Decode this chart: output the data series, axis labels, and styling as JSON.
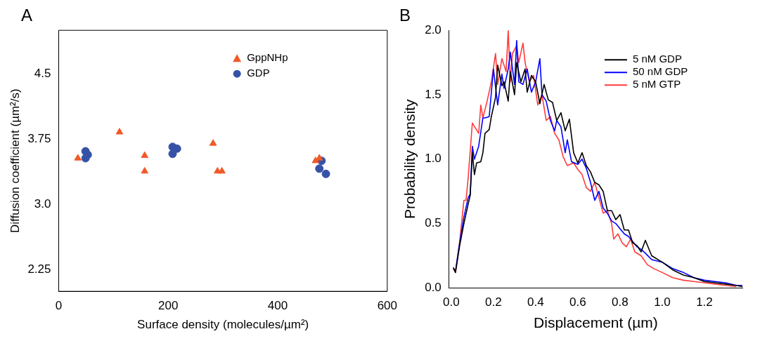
{
  "chart_data": [
    {
      "type": "scatter",
      "title": "A",
      "xlabel": "Surface density (molecules/µm²)",
      "ylabel": "Diffusion coefficient (µm²/s)",
      "xlim": [
        0,
        600
      ],
      "ylim": [
        2,
        5
      ],
      "xticks": [
        0,
        200,
        400,
        600
      ],
      "yticks": [
        2.25,
        {
          "value": 3.0,
          "label": "3.0"
        },
        3.75,
        4.5
      ],
      "grid": false,
      "legend": "top right",
      "series": [
        {
          "name": "GppNHp",
          "color": "#f05a28",
          "marker": "triangle",
          "x": [
            35,
            111,
            157,
            157,
            282,
            290,
            298,
            469,
            476
          ],
          "values": [
            3.53,
            3.83,
            3.56,
            3.38,
            3.7,
            3.38,
            3.38,
            3.5,
            3.53
          ]
        },
        {
          "name": "GDP",
          "color": "#3652a6",
          "marker": "circle",
          "x": [
            49,
            53,
            49,
            208,
            216,
            208,
            480,
            476,
            488
          ],
          "values": [
            3.61,
            3.57,
            3.53,
            3.66,
            3.64,
            3.58,
            3.5,
            3.41,
            3.35
          ]
        }
      ]
    },
    {
      "type": "line",
      "title": "B",
      "xlabel": "Displacement (µm)",
      "ylabel": "Probability density",
      "xlim": [
        -0.01,
        1.38
      ],
      "ylim": [
        0,
        2
      ],
      "xticks": [
        {
          "value": 0,
          "label": "0.0"
        },
        {
          "value": 0.2,
          "label": "0.2"
        },
        {
          "value": 0.4,
          "label": "0.4"
        },
        {
          "value": 0.6,
          "label": "0.6"
        },
        {
          "value": 0.8,
          "label": "0.8"
        },
        {
          "value": 1.0,
          "label": "1.0"
        },
        {
          "value": 1.2,
          "label": "1.2"
        }
      ],
      "yticks": [
        {
          "value": 0,
          "label": "0.0"
        },
        {
          "value": 0.5,
          "label": "0.5"
        },
        {
          "value": 1.0,
          "label": "1.0"
        },
        {
          "value": 1.5,
          "label": "1.5"
        },
        {
          "value": 2.0,
          "label": "2.0"
        }
      ],
      "grid": false,
      "legend": "top right",
      "marker": "none",
      "line_style": "solid",
      "series": [
        {
          "name": "5 nM GDP",
          "color": "#000000",
          "x": [
            0.01,
            0.02,
            0.04,
            0.06,
            0.08,
            0.09,
            0.1,
            0.11,
            0.12,
            0.14,
            0.15,
            0.16,
            0.18,
            0.19,
            0.21,
            0.22,
            0.24,
            0.25,
            0.27,
            0.28,
            0.3,
            0.31,
            0.33,
            0.35,
            0.36,
            0.38,
            0.4,
            0.42,
            0.44,
            0.46,
            0.48,
            0.5,
            0.52,
            0.54,
            0.56,
            0.58,
            0.6,
            0.62,
            0.64,
            0.66,
            0.68,
            0.7,
            0.72,
            0.74,
            0.76,
            0.78,
            0.8,
            0.82,
            0.84,
            0.86,
            0.88,
            0.9,
            0.92,
            0.95,
            1.0,
            1.05,
            1.1,
            1.15,
            1.2,
            1.25,
            1.3,
            1.35,
            1.38
          ],
          "values": [
            0.16,
            0.12,
            0.33,
            0.5,
            0.65,
            0.72,
            1.05,
            0.88,
            0.97,
            0.98,
            1.05,
            1.2,
            1.23,
            1.33,
            1.48,
            1.73,
            1.57,
            1.6,
            1.45,
            1.68,
            1.5,
            1.75,
            1.6,
            1.7,
            1.52,
            1.65,
            1.6,
            1.43,
            1.58,
            1.46,
            1.44,
            1.3,
            1.36,
            1.22,
            1.31,
            1.05,
            0.97,
            1.05,
            0.95,
            0.9,
            0.82,
            0.8,
            0.75,
            0.6,
            0.6,
            0.53,
            0.57,
            0.45,
            0.45,
            0.35,
            0.33,
            0.28,
            0.37,
            0.25,
            0.2,
            0.14,
            0.1,
            0.08,
            0.05,
            0.04,
            0.03,
            0.02,
            0.01
          ]
        },
        {
          "name": "50 nM GDP",
          "color": "#0000ff",
          "x": [
            0.01,
            0.02,
            0.04,
            0.06,
            0.08,
            0.09,
            0.1,
            0.11,
            0.13,
            0.15,
            0.16,
            0.18,
            0.2,
            0.22,
            0.24,
            0.25,
            0.27,
            0.28,
            0.3,
            0.31,
            0.32,
            0.34,
            0.36,
            0.38,
            0.4,
            0.42,
            0.43,
            0.45,
            0.47,
            0.49,
            0.5,
            0.52,
            0.54,
            0.55,
            0.57,
            0.6,
            0.62,
            0.64,
            0.66,
            0.68,
            0.7,
            0.72,
            0.74,
            0.76,
            0.78,
            0.8,
            0.82,
            0.84,
            0.86,
            0.88,
            0.9,
            0.92,
            0.95,
            1.0,
            1.05,
            1.1,
            1.15,
            1.2,
            1.25,
            1.3,
            1.35,
            1.38
          ],
          "values": [
            0.15,
            0.13,
            0.35,
            0.55,
            0.7,
            0.73,
            1.1,
            1.0,
            1.1,
            1.32,
            1.32,
            1.33,
            1.7,
            1.42,
            1.66,
            1.55,
            1.7,
            1.83,
            1.58,
            1.92,
            1.6,
            1.58,
            1.7,
            1.52,
            1.6,
            1.78,
            1.5,
            1.45,
            1.3,
            1.22,
            1.3,
            1.25,
            1.05,
            1.15,
            0.98,
            0.96,
            1.0,
            0.93,
            0.82,
            0.68,
            0.75,
            0.62,
            0.58,
            0.52,
            0.5,
            0.46,
            0.42,
            0.4,
            0.36,
            0.32,
            0.3,
            0.27,
            0.22,
            0.2,
            0.15,
            0.12,
            0.08,
            0.06,
            0.05,
            0.04,
            0.02,
            0.02
          ]
        },
        {
          "name": "5 nM GTP",
          "color": "#ff3b3b",
          "x": [
            0.01,
            0.02,
            0.04,
            0.06,
            0.07,
            0.08,
            0.1,
            0.11,
            0.13,
            0.14,
            0.15,
            0.17,
            0.19,
            0.21,
            0.22,
            0.24,
            0.26,
            0.27,
            0.28,
            0.29,
            0.31,
            0.32,
            0.34,
            0.35,
            0.37,
            0.39,
            0.41,
            0.43,
            0.45,
            0.47,
            0.49,
            0.51,
            0.53,
            0.55,
            0.58,
            0.6,
            0.62,
            0.64,
            0.66,
            0.68,
            0.7,
            0.72,
            0.74,
            0.76,
            0.77,
            0.79,
            0.81,
            0.83,
            0.85,
            0.87,
            0.9,
            0.93,
            0.96,
            1.0,
            1.05,
            1.1,
            1.15,
            1.2,
            1.25,
            1.3,
            1.35
          ],
          "values": [
            0.15,
            0.12,
            0.36,
            0.68,
            0.68,
            0.85,
            1.28,
            null,
            1.2,
            1.42,
            1.32,
            1.45,
            1.6,
            1.82,
            1.58,
            1.78,
            1.68,
            2.0,
            1.6,
            1.82,
            1.88,
            1.75,
            1.9,
            1.75,
            1.6,
            1.65,
            1.42,
            1.5,
            1.3,
            1.33,
            1.2,
            1.15,
            1.02,
            0.95,
            0.97,
            0.92,
            0.88,
            0.78,
            0.75,
            0.82,
            0.7,
            0.58,
            0.6,
            0.5,
            0.38,
            0.42,
            0.35,
            0.32,
            0.38,
            0.28,
            0.25,
            0.18,
            0.15,
            0.12,
            0.08,
            0.06,
            0.05,
            0.04,
            0.03,
            0.02,
            0.01
          ]
        }
      ]
    }
  ]
}
